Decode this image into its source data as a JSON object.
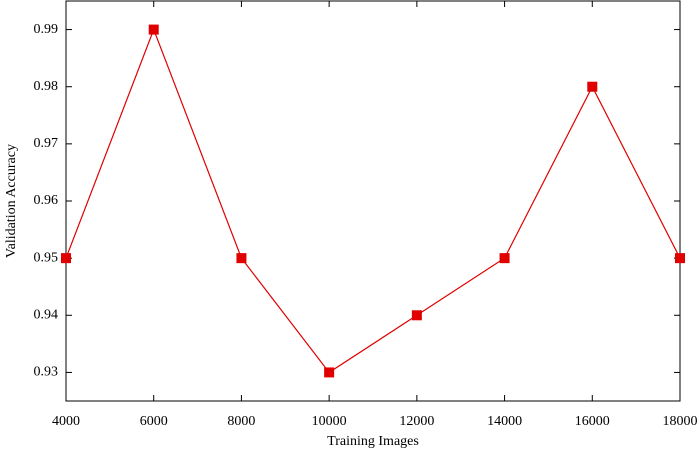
{
  "chart_data": {
    "type": "line",
    "x_label": "Training Images",
    "y_label": "Validation Accuracy",
    "x": [
      4000,
      6000,
      8000,
      10000,
      12000,
      14000,
      16000,
      18000
    ],
    "series": [
      {
        "color": "#e00000",
        "values": [
          0.95,
          0.99,
          0.95,
          0.93,
          0.94,
          0.95,
          0.98,
          0.95
        ]
      }
    ],
    "xlim": [
      4000,
      18000
    ],
    "xticks": [
      4000,
      6000,
      8000,
      10000,
      12000,
      14000,
      16000,
      18000
    ],
    "ylim": [
      0.925,
      0.995
    ],
    "yticks": [
      0.93,
      0.94,
      0.95,
      0.96,
      0.97,
      0.98,
      0.99
    ],
    "marker": "square"
  }
}
